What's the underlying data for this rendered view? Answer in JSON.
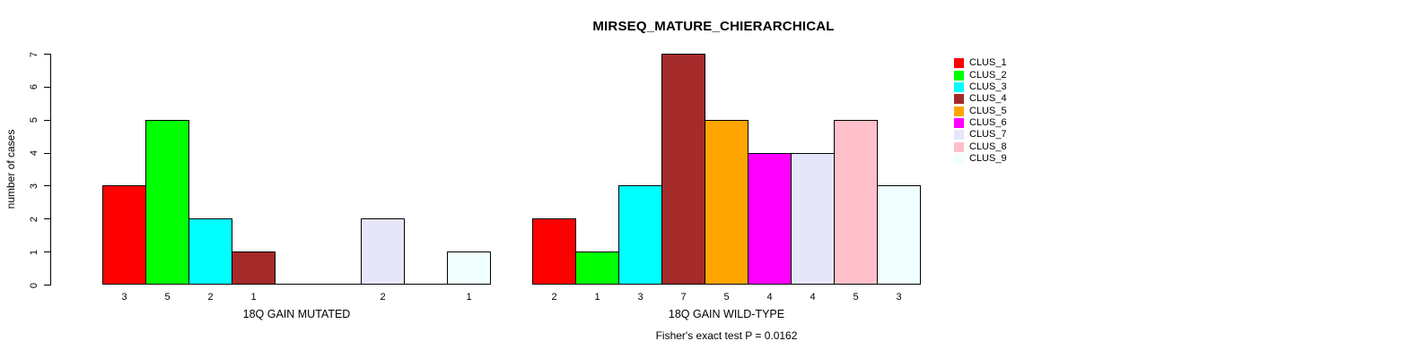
{
  "title": "MIRSEQ_MATURE_CHIERARCHICAL",
  "footnote": "Fisher's exact test P = 0.0162",
  "chart_data": {
    "type": "bar",
    "title": "MIRSEQ_MATURE_CHIERARCHICAL",
    "ylabel": "number of cases",
    "xlabel": "",
    "ylim": [
      0,
      7
    ],
    "yticks": [
      0,
      1,
      2,
      3,
      4,
      5,
      6,
      7
    ],
    "grid": false,
    "legend_position": "right",
    "categories": [
      "CLUS_1",
      "CLUS_2",
      "CLUS_3",
      "CLUS_4",
      "CLUS_5",
      "CLUS_6",
      "CLUS_7",
      "CLUS_8",
      "CLUS_9"
    ],
    "colors": [
      "#FF0000",
      "#00FF00",
      "#00FFFF",
      "#A52A2A",
      "#FFA500",
      "#FF00FF",
      "#E6E6FA",
      "#FFC0CB",
      "#F0FFFF"
    ],
    "bar_border_color": "#000000",
    "groups": [
      {
        "label": "18Q GAIN MUTATED",
        "values": [
          3,
          5,
          2,
          1,
          0,
          0,
          2,
          0,
          1
        ]
      },
      {
        "label": "18Q GAIN WILD-TYPE",
        "values": [
          2,
          1,
          3,
          7,
          5,
          4,
          4,
          5,
          3
        ]
      }
    ],
    "annotation": "Fisher's exact test P = 0.0162"
  }
}
